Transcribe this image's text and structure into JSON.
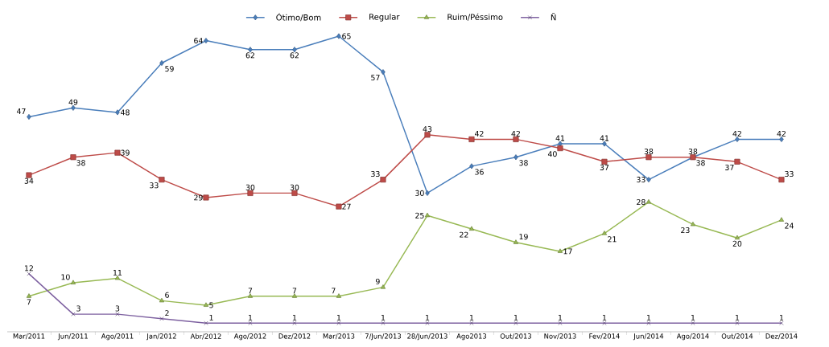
{
  "chart_data": {
    "type": "line",
    "categories": [
      "Mar/2011",
      "Jun/2011",
      "Ago/2011",
      "Jan/2012",
      "Abr/2012",
      "Ago/2012",
      "Dez/2012",
      "Mar/2013",
      "7/Jun/2013",
      "28/Jun/2013",
      "Ago2013",
      "Out/2013",
      "Nov/2013",
      "Fev/2014",
      "Jun/2014",
      "Ago/2014",
      "Out/2014",
      "Dez/2014"
    ],
    "series": [
      {
        "name": "Ótimo/Bom",
        "color": "#4a7ebb",
        "marker": "diamond",
        "values": [
          47,
          49,
          48,
          59,
          64,
          62,
          62,
          65,
          57,
          30,
          36,
          38,
          41,
          41,
          33,
          38,
          42,
          42
        ]
      },
      {
        "name": "Regular",
        "color": "#be4b48",
        "marker": "square",
        "values": [
          34,
          38,
          39,
          33,
          29,
          30,
          30,
          27,
          33,
          43,
          42,
          42,
          40,
          37,
          38,
          38,
          37,
          33
        ]
      },
      {
        "name": "Ruim/Péssimo",
        "color": "#98b954",
        "marker": "triangle",
        "values": [
          7,
          10,
          11,
          6,
          5,
          7,
          7,
          7,
          9,
          25,
          22,
          19,
          17,
          21,
          28,
          23,
          20,
          24
        ]
      },
      {
        "name": "Ñ",
        "color": "#7d60a0",
        "marker": "cross",
        "values": [
          12,
          3,
          3,
          2,
          1,
          1,
          1,
          1,
          1,
          1,
          1,
          1,
          1,
          1,
          1,
          1,
          1,
          1
        ]
      }
    ],
    "data_labels": true,
    "legend": "top"
  }
}
